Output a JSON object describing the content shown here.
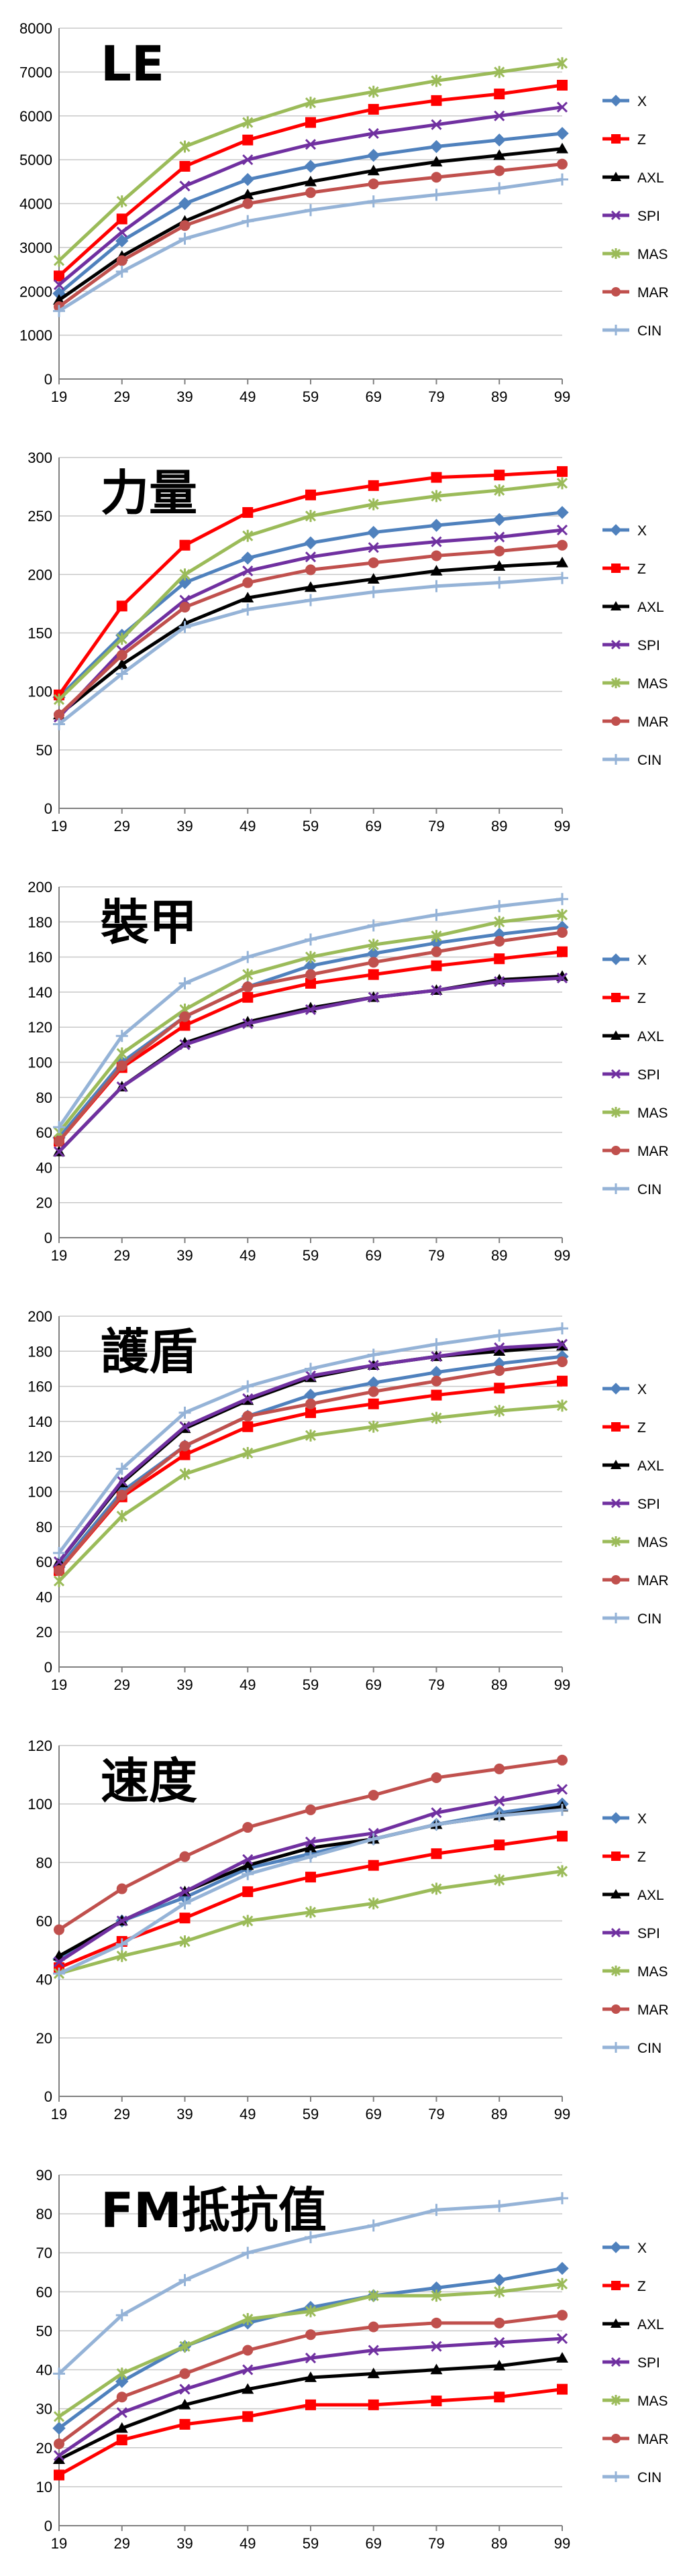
{
  "colors": {
    "X": "#4F81BD",
    "Z": "#FF0000",
    "AXL": "#000000",
    "SPI": "#7030A0",
    "MAS": "#9BBB59",
    "MAR": "#C0504D",
    "CIN": "#95B3D7"
  },
  "markers": {
    "X": "diamond",
    "Z": "square",
    "AXL": "triangle",
    "SPI": "x",
    "MAS": "star",
    "MAR": "circle",
    "CIN": "plus"
  },
  "chart_data": [
    {
      "type": "line",
      "title": "LE",
      "x": [
        "19",
        "29",
        "39",
        "49",
        "59",
        "69",
        "79",
        "89",
        "99"
      ],
      "ylim": [
        0,
        8000
      ],
      "ytick_step": 1000,
      "grid": true,
      "legend": "right",
      "series": [
        {
          "name": "X",
          "values": [
            1950,
            3150,
            4000,
            4550,
            4850,
            5100,
            5300,
            5450,
            5600
          ]
        },
        {
          "name": "Z",
          "values": [
            2350,
            3650,
            4850,
            5450,
            5850,
            6150,
            6350,
            6500,
            6700
          ]
        },
        {
          "name": "AXL",
          "values": [
            1800,
            2800,
            3600,
            4200,
            4500,
            4750,
            4950,
            5100,
            5250
          ]
        },
        {
          "name": "SPI",
          "values": [
            2150,
            3350,
            4400,
            5000,
            5350,
            5600,
            5800,
            6000,
            6200
          ]
        },
        {
          "name": "MAS",
          "values": [
            2700,
            4050,
            5300,
            5850,
            6300,
            6550,
            6800,
            7000,
            7200
          ]
        },
        {
          "name": "MAR",
          "values": [
            1650,
            2700,
            3500,
            4000,
            4250,
            4450,
            4600,
            4750,
            4900
          ]
        },
        {
          "name": "CIN",
          "values": [
            1550,
            2450,
            3200,
            3600,
            3850,
            4050,
            4200,
            4350,
            4550
          ]
        }
      ]
    },
    {
      "type": "line",
      "title": "力量",
      "x": [
        "19",
        "29",
        "39",
        "49",
        "59",
        "69",
        "79",
        "89",
        "99"
      ],
      "ylim": [
        0,
        300
      ],
      "ytick_step": 50,
      "grid": true,
      "legend": "right",
      "series": [
        {
          "name": "X",
          "values": [
            95,
            148,
            193,
            214,
            227,
            236,
            242,
            247,
            253
          ]
        },
        {
          "name": "Z",
          "values": [
            97,
            173,
            225,
            253,
            268,
            276,
            283,
            285,
            288
          ]
        },
        {
          "name": "AXL",
          "values": [
            80,
            123,
            158,
            180,
            189,
            196,
            203,
            207,
            210
          ]
        },
        {
          "name": "SPI",
          "values": [
            78,
            135,
            178,
            203,
            215,
            223,
            228,
            232,
            238
          ]
        },
        {
          "name": "MAS",
          "values": [
            93,
            145,
            200,
            233,
            250,
            260,
            267,
            272,
            278
          ]
        },
        {
          "name": "MAR",
          "values": [
            80,
            131,
            172,
            193,
            204,
            210,
            216,
            220,
            225
          ]
        },
        {
          "name": "CIN",
          "values": [
            72,
            115,
            155,
            170,
            178,
            185,
            190,
            193,
            197
          ]
        }
      ]
    },
    {
      "type": "line",
      "title": "裝甲",
      "x": [
        "19",
        "29",
        "39",
        "49",
        "59",
        "69",
        "79",
        "89",
        "99"
      ],
      "ylim": [
        0,
        200
      ],
      "ytick_step": 20,
      "grid": true,
      "legend": "right",
      "series": [
        {
          "name": "X",
          "values": [
            57,
            100,
            126,
            143,
            155,
            162,
            168,
            173,
            177
          ]
        },
        {
          "name": "Z",
          "values": [
            55,
            97,
            121,
            137,
            145,
            150,
            155,
            159,
            163
          ]
        },
        {
          "name": "AXL",
          "values": [
            49,
            86,
            111,
            123,
            131,
            137,
            141,
            147,
            149
          ]
        },
        {
          "name": "SPI",
          "values": [
            49,
            86,
            110,
            122,
            130,
            137,
            141,
            146,
            148
          ]
        },
        {
          "name": "MAS",
          "values": [
            60,
            105,
            130,
            150,
            160,
            167,
            172,
            180,
            184
          ]
        },
        {
          "name": "MAR",
          "values": [
            55,
            98,
            126,
            143,
            150,
            157,
            163,
            169,
            174
          ]
        },
        {
          "name": "CIN",
          "values": [
            63,
            115,
            145,
            160,
            170,
            178,
            184,
            189,
            193
          ]
        }
      ]
    },
    {
      "type": "line",
      "title": "護盾",
      "x": [
        "19",
        "29",
        "39",
        "49",
        "59",
        "69",
        "79",
        "89",
        "99"
      ],
      "ylim": [
        0,
        200
      ],
      "ytick_step": 20,
      "grid": true,
      "legend": "right",
      "series": [
        {
          "name": "X",
          "values": [
            57,
            100,
            126,
            143,
            155,
            162,
            168,
            173,
            177
          ]
        },
        {
          "name": "Z",
          "values": [
            55,
            97,
            121,
            137,
            145,
            150,
            155,
            159,
            163
          ]
        },
        {
          "name": "AXL",
          "values": [
            60,
            105,
            136,
            152,
            165,
            172,
            177,
            180,
            183
          ]
        },
        {
          "name": "SPI",
          "values": [
            60,
            106,
            137,
            153,
            166,
            172,
            177,
            182,
            184
          ]
        },
        {
          "name": "MAS",
          "values": [
            49,
            86,
            110,
            122,
            132,
            137,
            142,
            146,
            149
          ]
        },
        {
          "name": "MAR",
          "values": [
            55,
            98,
            126,
            143,
            150,
            157,
            163,
            169,
            174
          ]
        },
        {
          "name": "CIN",
          "values": [
            65,
            113,
            145,
            160,
            170,
            178,
            184,
            189,
            193
          ]
        }
      ]
    },
    {
      "type": "line",
      "title": "速度",
      "x": [
        "19",
        "29",
        "39",
        "49",
        "59",
        "69",
        "79",
        "89",
        "99"
      ],
      "ylim": [
        0,
        120
      ],
      "ytick_step": 20,
      "grid": true,
      "legend": "right",
      "series": [
        {
          "name": "X",
          "values": [
            47,
            60,
            68,
            78,
            83,
            88,
            93,
            97,
            100
          ]
        },
        {
          "name": "Z",
          "values": [
            44,
            53,
            61,
            70,
            75,
            79,
            83,
            86,
            89
          ]
        },
        {
          "name": "AXL",
          "values": [
            48,
            60,
            70,
            79,
            85,
            88,
            93,
            96,
            99
          ]
        },
        {
          "name": "SPI",
          "values": [
            46,
            60,
            70,
            81,
            87,
            90,
            97,
            101,
            105
          ]
        },
        {
          "name": "MAS",
          "values": [
            42,
            48,
            53,
            60,
            63,
            66,
            71,
            74,
            77
          ]
        },
        {
          "name": "MAR",
          "values": [
            57,
            71,
            82,
            92,
            98,
            103,
            109,
            112,
            115
          ]
        },
        {
          "name": "CIN",
          "values": [
            42,
            52,
            66,
            76,
            82,
            88,
            93,
            96,
            98
          ]
        }
      ]
    },
    {
      "type": "line",
      "title": "FM抵抗值",
      "x": [
        "19",
        "29",
        "39",
        "49",
        "59",
        "69",
        "79",
        "89",
        "99"
      ],
      "ylim": [
        0,
        90
      ],
      "ytick_step": 10,
      "grid": true,
      "legend": "right",
      "series": [
        {
          "name": "X",
          "values": [
            25,
            37,
            46,
            52,
            56,
            59,
            61,
            63,
            66
          ]
        },
        {
          "name": "Z",
          "values": [
            13,
            22,
            26,
            28,
            31,
            31,
            32,
            33,
            35
          ]
        },
        {
          "name": "AXL",
          "values": [
            17,
            25,
            31,
            35,
            38,
            39,
            40,
            41,
            43
          ]
        },
        {
          "name": "SPI",
          "values": [
            18,
            29,
            35,
            40,
            43,
            45,
            46,
            47,
            48
          ]
        },
        {
          "name": "MAS",
          "values": [
            28,
            39,
            46,
            53,
            55,
            59,
            59,
            60,
            62
          ]
        },
        {
          "name": "MAR",
          "values": [
            21,
            33,
            39,
            45,
            49,
            51,
            52,
            52,
            54
          ]
        },
        {
          "name": "CIN",
          "values": [
            39,
            54,
            63,
            70,
            74,
            77,
            81,
            82,
            84
          ]
        }
      ]
    }
  ]
}
